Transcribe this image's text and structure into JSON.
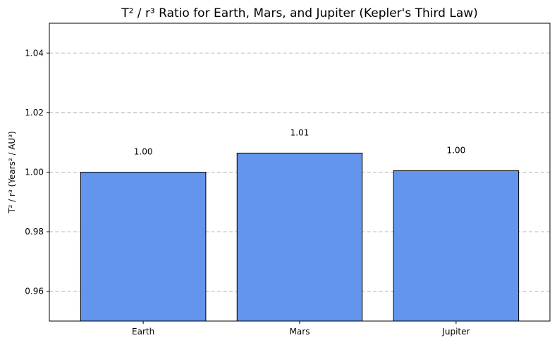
{
  "chart_data": {
    "type": "bar",
    "title": "T² / r³ Ratio for Earth, Mars, and Jupiter (Kepler's Third Law)",
    "xlabel": "",
    "ylabel": "T² / r³ (Years² / AU³)",
    "categories": [
      "Earth",
      "Mars",
      "Jupiter"
    ],
    "values": [
      1.0,
      1.0064,
      1.0005
    ],
    "value_labels": [
      "1.00",
      "1.01",
      "1.00"
    ],
    "ylim": [
      0.95,
      1.05
    ],
    "yticks": [
      0.96,
      0.98,
      1.0,
      1.02,
      1.04
    ],
    "ytick_labels": [
      "0.96",
      "0.98",
      "1.00",
      "1.02",
      "1.04"
    ],
    "grid": "y-dashed",
    "bar_color": "#6495ED",
    "edge_color": "#000000"
  }
}
